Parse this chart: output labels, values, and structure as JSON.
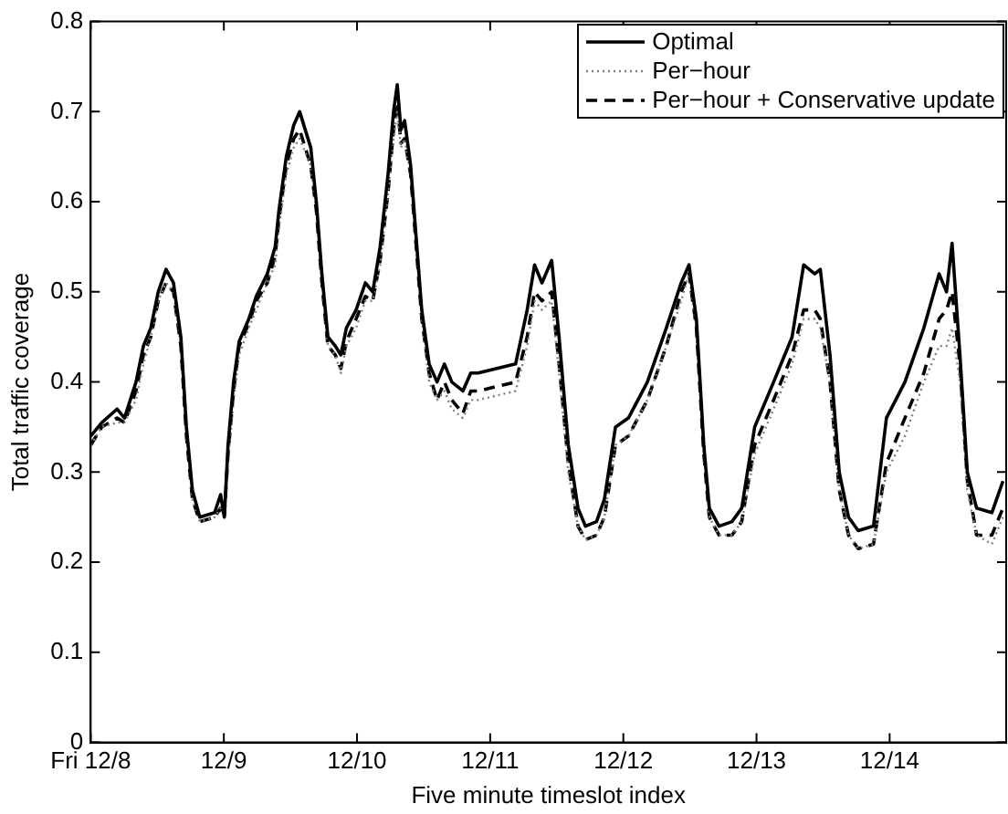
{
  "chart_data": {
    "type": "line",
    "xlabel": "Five minute timeslot index",
    "ylabel": "Total traffic coverage",
    "x": [
      "--12-08T00:00",
      "--12-08T02:00",
      "--12-08T04:45",
      "--12-08T06:05",
      "--12-08T08:10",
      "--12-08T09:30",
      "--12-08T10:50",
      "--12-08T12:10",
      "--12-08T13:35",
      "--12-08T14:55",
      "--12-08T16:15",
      "--12-08T17:15",
      "--12-08T18:20",
      "--12-08T19:40",
      "--12-08T22:20",
      "--12-08T23:25",
      "--12-09T00:05",
      "--12-09T00:45",
      "--12-09T01:45",
      "--12-09T02:45",
      "--12-09T04:30",
      "--12-09T05:50",
      "--12-09T07:50",
      "--12-09T09:15",
      "--12-09T09:55",
      "--12-09T11:15",
      "--12-09T12:35",
      "--12-09T13:40",
      "--12-09T14:40",
      "--12-09T15:40",
      "--12-09T16:40",
      "--12-09T17:40",
      "--12-09T18:45",
      "--12-09T20:05",
      "--12-09T21:05",
      "--12-09T22:05",
      "--12-09T23:50",
      "--12-10T01:30",
      "--12-10T02:50",
      "--12-10T04:10",
      "--12-10T05:35",
      "--12-10T06:35",
      "--12-10T07:15",
      "--12-10T07:55",
      "--12-10T08:35",
      "--12-10T09:40",
      "--12-10T10:40",
      "--12-10T11:40",
      "--12-10T13:00",
      "--12-10T14:25",
      "--12-10T15:45",
      "--12-10T17:05",
      "--12-10T19:05",
      "--12-10T20:30",
      "--12-10T21:50",
      "--12-11T04:35",
      "--12-11T06:40",
      "--12-11T08:00",
      "--12-11T09:20",
      "--12-11T11:05",
      "--12-11T12:25",
      "--12-11T14:05",
      "--12-11T15:50",
      "--12-11T17:10",
      "--12-11T19:10",
      "--12-11T20:35",
      "--12-11T22:35",
      "--12-12T00:55",
      "--12-12T04:20",
      "--12-12T07:45",
      "--12-12T10:25",
      "--12-12T11:50",
      "--12-12T13:10",
      "--12-12T14:30",
      "--12-12T15:30",
      "--12-12T17:15",
      "--12-12T19:35",
      "--12-12T21:20",
      "--12-12T23:40",
      "--12-13T03:05",
      "--12-13T06:25",
      "--12-13T08:30",
      "--12-13T10:30",
      "--12-13T11:30",
      "--12-13T13:15",
      "--12-13T14:55",
      "--12-13T16:35",
      "--12-13T18:20",
      "--12-13T21:05",
      "--12-13T23:25",
      "--12-14T02:45",
      "--12-14T06:10",
      "--12-14T08:55",
      "--12-14T10:15",
      "--12-14T11:15",
      "--12-14T12:40",
      "--12-14T14:00",
      "--12-14T15:40",
      "--12-14T18:25",
      "--12-14T20:25"
    ],
    "xlim": [
      "--12-08T00:00",
      "--12-14T21:00"
    ],
    "xticks": [
      {
        "value": "--12-08",
        "label": "Fri 12/8"
      },
      {
        "value": "--12-09",
        "label": "12/9"
      },
      {
        "value": "--12-10",
        "label": "12/10"
      },
      {
        "value": "--12-11",
        "label": "12/11"
      },
      {
        "value": "--12-12",
        "label": "12/12"
      },
      {
        "value": "--12-13",
        "label": "12/13"
      },
      {
        "value": "--12-14",
        "label": "12/14"
      }
    ],
    "ylim": [
      0,
      0.8
    ],
    "yticks": [
      0,
      0.1,
      0.2,
      0.3,
      0.4,
      0.5,
      0.6,
      0.7,
      0.8
    ],
    "grid": false,
    "legend": "top right",
    "marker": "none",
    "series": [
      {
        "name": "Optimal",
        "color": "#000000",
        "line_style": "solid",
        "values": [
          0.34,
          0.355,
          0.37,
          0.36,
          0.4,
          0.44,
          0.46,
          0.5,
          0.525,
          0.51,
          0.45,
          0.35,
          0.28,
          0.25,
          0.255,
          0.275,
          0.25,
          0.33,
          0.4,
          0.445,
          0.47,
          0.495,
          0.52,
          0.55,
          0.59,
          0.65,
          0.685,
          0.7,
          0.68,
          0.66,
          0.6,
          0.52,
          0.45,
          0.44,
          0.43,
          0.46,
          0.48,
          0.51,
          0.5,
          0.55,
          0.63,
          0.7,
          0.73,
          0.68,
          0.69,
          0.64,
          0.56,
          0.48,
          0.42,
          0.4,
          0.42,
          0.4,
          0.39,
          0.41,
          0.41,
          0.42,
          0.48,
          0.53,
          0.51,
          0.535,
          0.45,
          0.33,
          0.26,
          0.24,
          0.245,
          0.27,
          0.35,
          0.36,
          0.4,
          0.46,
          0.51,
          0.53,
          0.47,
          0.33,
          0.26,
          0.24,
          0.245,
          0.26,
          0.35,
          0.4,
          0.45,
          0.53,
          0.52,
          0.525,
          0.43,
          0.3,
          0.25,
          0.235,
          0.24,
          0.36,
          0.4,
          0.46,
          0.52,
          0.5,
          0.554,
          0.43,
          0.3,
          0.26,
          0.255,
          0.29
        ]
      },
      {
        "name": "Per−hour",
        "color": "#808080",
        "line_style": "dotted",
        "values": [
          0.33,
          0.35,
          0.355,
          0.355,
          0.38,
          0.42,
          0.45,
          0.49,
          0.51,
          0.5,
          0.44,
          0.34,
          0.27,
          0.245,
          0.25,
          0.26,
          0.25,
          0.31,
          0.38,
          0.43,
          0.46,
          0.48,
          0.51,
          0.53,
          0.57,
          0.63,
          0.66,
          0.67,
          0.655,
          0.64,
          0.59,
          0.51,
          0.44,
          0.43,
          0.41,
          0.44,
          0.46,
          0.49,
          0.49,
          0.53,
          0.61,
          0.67,
          0.7,
          0.66,
          0.67,
          0.63,
          0.55,
          0.47,
          0.4,
          0.38,
          0.39,
          0.37,
          0.36,
          0.38,
          0.38,
          0.39,
          0.44,
          0.49,
          0.48,
          0.49,
          0.41,
          0.3,
          0.24,
          0.225,
          0.23,
          0.25,
          0.33,
          0.34,
          0.38,
          0.44,
          0.49,
          0.52,
          0.46,
          0.32,
          0.25,
          0.23,
          0.23,
          0.245,
          0.32,
          0.37,
          0.42,
          0.47,
          0.47,
          0.46,
          0.4,
          0.28,
          0.23,
          0.215,
          0.22,
          0.3,
          0.34,
          0.4,
          0.44,
          0.44,
          0.46,
          0.4,
          0.28,
          0.23,
          0.22,
          0.25
        ]
      },
      {
        "name": "Per−hour + Conservative update",
        "color": "#000000",
        "line_style": "dashed",
        "values": [
          0.33,
          0.35,
          0.36,
          0.355,
          0.39,
          0.43,
          0.45,
          0.49,
          0.51,
          0.5,
          0.44,
          0.34,
          0.27,
          0.245,
          0.25,
          0.26,
          0.25,
          0.32,
          0.39,
          0.44,
          0.465,
          0.49,
          0.51,
          0.54,
          0.58,
          0.64,
          0.67,
          0.68,
          0.66,
          0.64,
          0.59,
          0.51,
          0.44,
          0.43,
          0.415,
          0.445,
          0.47,
          0.495,
          0.49,
          0.535,
          0.61,
          0.68,
          0.71,
          0.665,
          0.67,
          0.63,
          0.55,
          0.47,
          0.41,
          0.38,
          0.4,
          0.38,
          0.365,
          0.39,
          0.39,
          0.4,
          0.45,
          0.5,
          0.49,
          0.5,
          0.42,
          0.31,
          0.24,
          0.225,
          0.23,
          0.25,
          0.33,
          0.34,
          0.38,
          0.44,
          0.5,
          0.52,
          0.46,
          0.32,
          0.25,
          0.23,
          0.23,
          0.245,
          0.33,
          0.38,
          0.43,
          0.48,
          0.48,
          0.47,
          0.4,
          0.28,
          0.23,
          0.215,
          0.22,
          0.31,
          0.36,
          0.41,
          0.47,
          0.48,
          0.5,
          0.42,
          0.29,
          0.23,
          0.23,
          0.26
        ]
      }
    ]
  }
}
